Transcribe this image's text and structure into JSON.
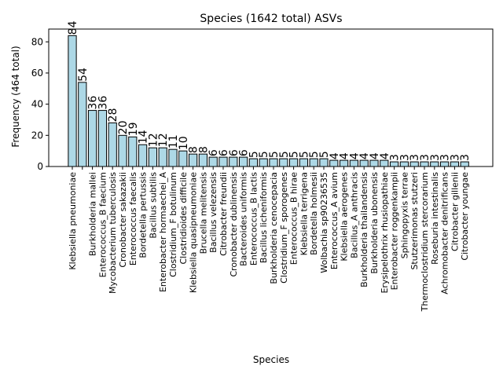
{
  "chart_data": {
    "type": "bar",
    "title": "Species (1642 total) ASVs",
    "x_label": "Species",
    "y_label": "Frequency (464 total)",
    "categories": [
      "Klebsiella pneumoniae",
      null,
      "Burkholderia mallei",
      "Enterococcus_B faecium",
      "Mycobacterium tuberculosis",
      "Cronobacter sakazakii",
      "Enterococcus faecalis",
      "Bordetella pertussis",
      "Bacillus subtilis",
      "Enterobacter hormaechei_A",
      "Clostridium_F botulinum",
      "Clostridioides difficile",
      "Klebsiella quasipneumoniae",
      "Brucella melitensis",
      "Bacillus velezensis",
      "Citrobacter freundii",
      "Cronobacter dublinensis",
      "Bacteroides uniformis",
      "Enterococcus_B lactis",
      "Bacillus licheniformis",
      "Burkholderia cenocepacia",
      "Clostridium_F sporogenes",
      "Enterococcus_B hirae",
      "Klebsiella terrigena",
      "Bordetella holmesii",
      "Wolbachia sp90236535",
      "Enterococcus_A avium",
      "Klebsiella aerogenes",
      "Bacillus_A anthracis",
      "Burkholderia thailandensis",
      "Burkholderia ubonensis",
      "Erysipelothrix rhusiopathiae",
      "Enterobacter roggenkampii",
      "Sphingopyxis terrae",
      "Stutzerimonas stutzeri",
      "Thermoclostridium stercorarium",
      "Roseburia intestinalis",
      "Achromobacter denitrificans",
      "Citrobacter gillenii",
      "Citrobacter youngae"
    ],
    "values": [
      84,
      54,
      36,
      36,
      28,
      20,
      19,
      14,
      12,
      12,
      11,
      10,
      8,
      8,
      6,
      6,
      6,
      6,
      5,
      5,
      5,
      5,
      5,
      5,
      5,
      5,
      4,
      4,
      4,
      4,
      4,
      4,
      3,
      3,
      3,
      3,
      3,
      3,
      3,
      3
    ],
    "color": "#add8e6",
    "edge_color": "#000000",
    "ylim": [
      0,
      88.2
    ],
    "yticks": [
      0,
      20,
      40,
      60,
      80
    ],
    "grid": false
  }
}
